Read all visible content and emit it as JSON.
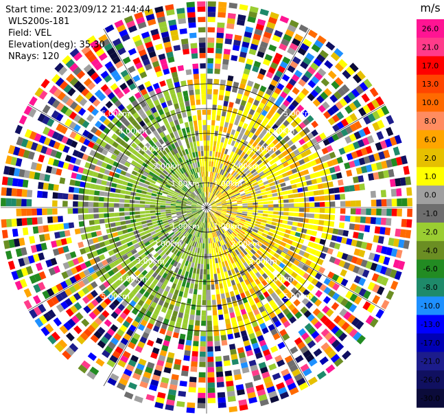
{
  "header": {
    "start_time": "Start time: 2023/09/12 21:44:44",
    "instrument": "WLS200s-181",
    "field": "Field: VEL",
    "elevation": "Elevation(deg): 35.30",
    "nrays": "NRays: 120"
  },
  "chart_data": {
    "type": "heatmap",
    "projection": "polar-ppi",
    "field": "VEL",
    "units": "m/s",
    "n_rays": 120,
    "elevation_deg": 35.3,
    "range_rings_km": [
      1.0,
      2.0,
      3.0,
      4.0,
      5.0
    ],
    "ring_labels": [
      "1.00km",
      "2.00km",
      "3.00km",
      "4.00km",
      "5.00km"
    ],
    "max_range_km": 5.0,
    "grid": true,
    "colorbar": {
      "unit_label": "m/s",
      "ticks": [
        "26.0",
        "21.0",
        "17.0",
        "13.0",
        "10.0",
        "8.0",
        "6.0",
        "2.0",
        "1.0",
        "0.0",
        "-1.0",
        "-2.0",
        "-4.0",
        "-6.0",
        "-8.0",
        "-10.0",
        "-13.0",
        "-17.0",
        "-21.0",
        "-26.0",
        "-30.0"
      ],
      "colors": [
        "#ff1493",
        "#ff3b8a",
        "#ff0000",
        "#ff4500",
        "#ff6a00",
        "#ff8c60",
        "#ffa500",
        "#e6c000",
        "#ffff00",
        "#a0a0a0",
        "#6e6e6e",
        "#9acd32",
        "#6b8e23",
        "#228b22",
        "#1e8a6a",
        "#1e90ff",
        "#0000ff",
        "#0000b4",
        "#1c1c8c",
        "#101060",
        "#0b0b3a"
      ]
    },
    "regions": [
      {
        "sector": "north-east",
        "dominant_velocity": "2.0 to 6.0",
        "color": "#ffff00"
      },
      {
        "sector": "west",
        "dominant_velocity": "-2.0 to -6.0",
        "color": "#9acd32"
      },
      {
        "sector": "outer ring beyond 3.00km",
        "dominant_velocity": "noise",
        "color": "mixed"
      }
    ]
  }
}
